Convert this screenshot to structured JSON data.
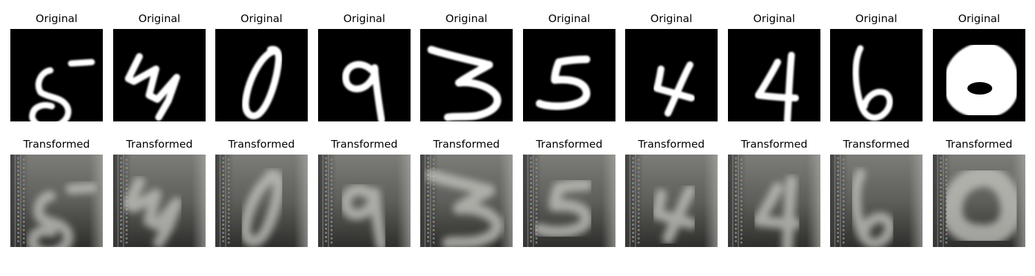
{
  "row_original": {
    "label": "Original",
    "digits": [
      {
        "glyph": "5",
        "icon": "digit-5-mnist"
      },
      {
        "glyph": "4",
        "icon": "digit-4-mnist"
      },
      {
        "glyph": "0",
        "icon": "digit-0-mnist"
      },
      {
        "glyph": "9",
        "icon": "digit-9-mnist"
      },
      {
        "glyph": "3",
        "icon": "digit-3-mnist"
      },
      {
        "glyph": "5",
        "icon": "digit-5-mnist"
      },
      {
        "glyph": "4",
        "icon": "digit-4-mnist"
      },
      {
        "glyph": "4",
        "icon": "digit-4-mnist"
      },
      {
        "glyph": "6",
        "icon": "digit-6-mnist"
      },
      {
        "glyph": "0",
        "icon": "digit-0-mnist-thick"
      }
    ]
  },
  "row_transformed": {
    "label": "Transformed"
  },
  "titles": {
    "original": [
      "Original",
      "Original",
      "Original",
      "Original",
      "Original",
      "Original",
      "Original",
      "Original",
      "Original",
      "Original"
    ],
    "transformed": [
      "Transformed",
      "Transformed",
      "Transformed",
      "Transformed",
      "Transformed",
      "Transformed",
      "Transformed",
      "Transformed",
      "Transformed",
      "Transformed"
    ]
  },
  "colors": {
    "original_bg": "#000000",
    "original_stroke": "#ffffff",
    "transformed_bg": "#6a6a66",
    "transformed_stroke": "#c8c8c2"
  }
}
